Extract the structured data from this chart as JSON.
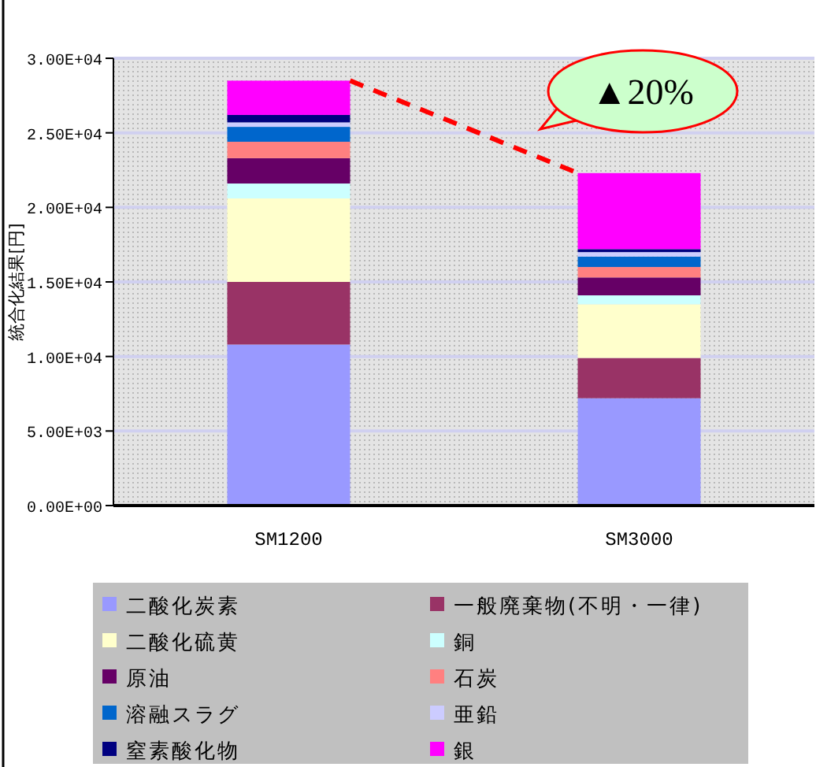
{
  "chart_data": {
    "type": "bar",
    "stacked": true,
    "ylabel": "統合化結果[円]",
    "categories": [
      "SM1200",
      "SM3000"
    ],
    "series": [
      {
        "name": "二酸化炭素",
        "color": "#9999ff",
        "values": [
          10800,
          7200
        ]
      },
      {
        "name": "一般廃棄物(不明・一律)",
        "color": "#993366",
        "values": [
          4200,
          2700
        ]
      },
      {
        "name": "二酸化硫黄",
        "color": "#ffffcc",
        "values": [
          5600,
          3600
        ]
      },
      {
        "name": "銅",
        "color": "#ccffff",
        "values": [
          1000,
          600
        ]
      },
      {
        "name": "原油",
        "color": "#660066",
        "values": [
          1700,
          1200
        ]
      },
      {
        "name": "石炭",
        "color": "#ff8080",
        "values": [
          1100,
          700
        ]
      },
      {
        "name": "溶融スラグ",
        "color": "#0066cc",
        "values": [
          1000,
          700
        ]
      },
      {
        "name": "亜鉛",
        "color": "#ccccff",
        "values": [
          300,
          300
        ]
      },
      {
        "name": "窒素酸化物",
        "color": "#000080",
        "values": [
          500,
          200
        ]
      },
      {
        "name": "銀",
        "color": "#ff00ff",
        "values": [
          2300,
          5100
        ]
      }
    ],
    "ylim": [
      0,
      30000
    ],
    "yticks": [
      {
        "value": 0,
        "label": "0.00E+00"
      },
      {
        "value": 5000,
        "label": "5.00E+03"
      },
      {
        "value": 10000,
        "label": "1.00E+04"
      },
      {
        "value": 15000,
        "label": "1.50E+04"
      },
      {
        "value": 20000,
        "label": "2.00E+04"
      },
      {
        "value": 25000,
        "label": "2.50E+04"
      },
      {
        "value": 30000,
        "label": "3.00E+04"
      }
    ],
    "grid": "y",
    "legend": "bottom",
    "annotations": [
      "▲20%"
    ]
  }
}
